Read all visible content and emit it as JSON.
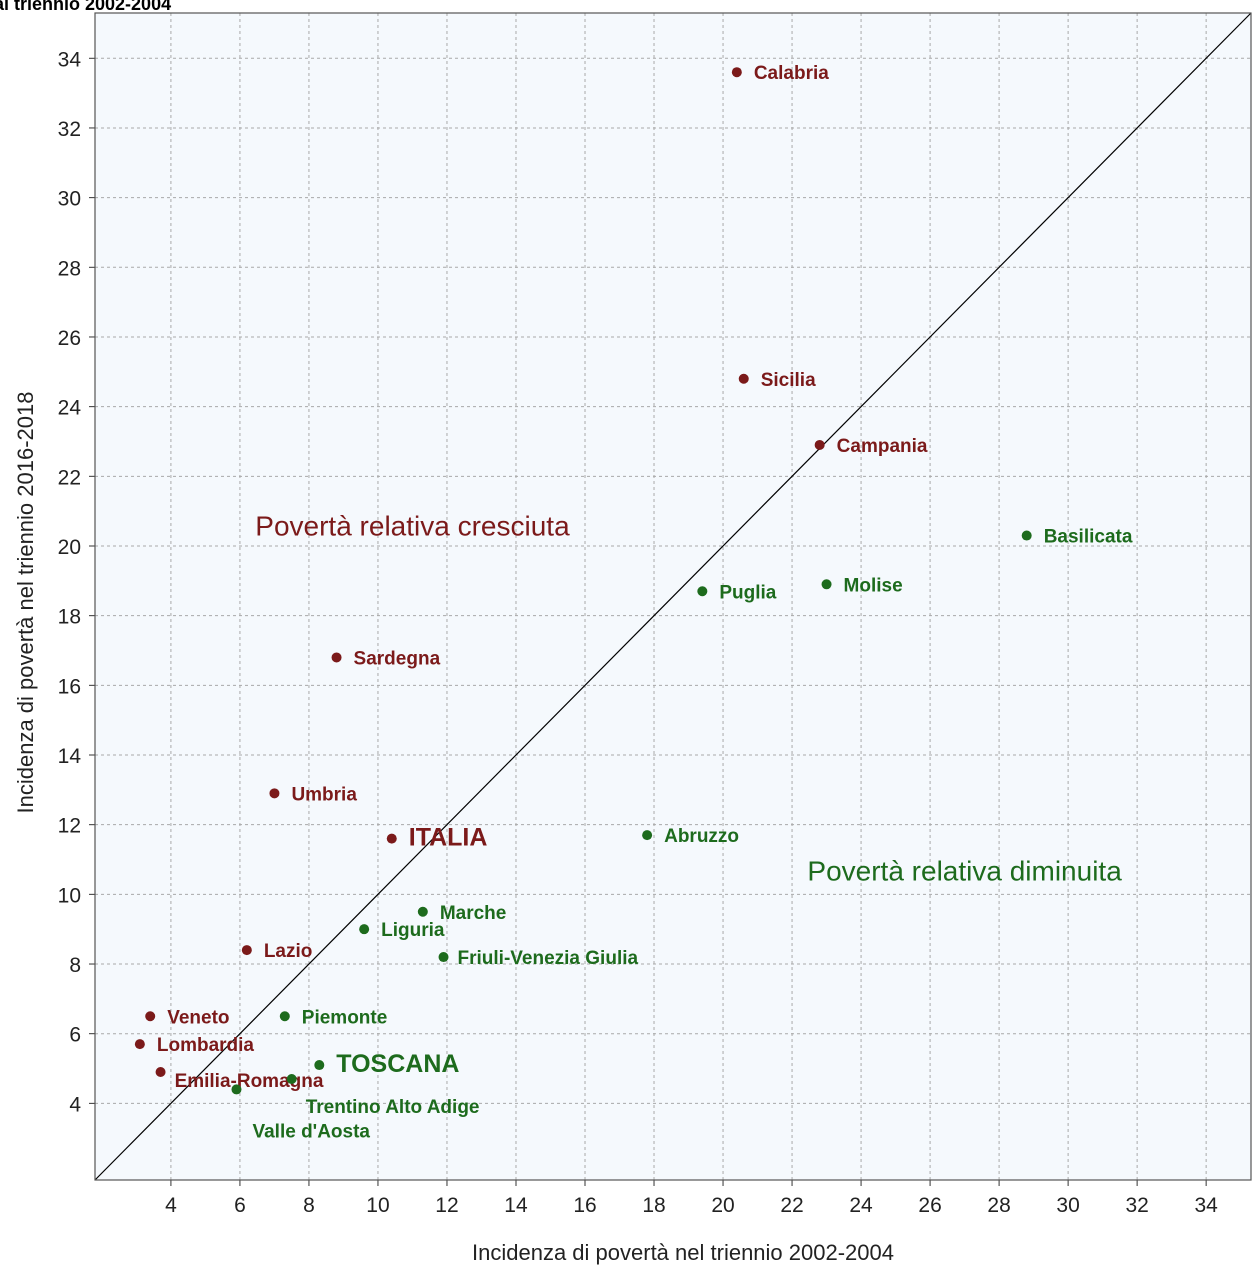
{
  "header": {
    "title": "al triennio 2002-2004"
  },
  "chart_data": {
    "type": "scatter",
    "xlabel": "Incidenza di povertà nel triennio 2002-2004",
    "ylabel": "Incidenza di povertà nel triennio 2016-2018",
    "xlim": [
      1.8,
      35.3
    ],
    "ylim": [
      1.8,
      35.3
    ],
    "x_ticks": [
      4,
      6,
      8,
      10,
      12,
      14,
      16,
      18,
      20,
      22,
      24,
      26,
      28,
      30,
      32,
      34
    ],
    "y_ticks": [
      4,
      6,
      8,
      10,
      12,
      14,
      16,
      18,
      20,
      22,
      24,
      26,
      28,
      30,
      32,
      34
    ],
    "grid": true,
    "reference_line": "y = x",
    "colors": {
      "increased": "#7b1a1a",
      "decreased": "#1d6b1d",
      "line": "#000000",
      "background": "#f5f9fd",
      "grid": "#a9a9a9"
    },
    "zone_labels": [
      {
        "text": "Povertà relativa cresciuta",
        "group": "increased",
        "x": 11.0,
        "y": 20.3
      },
      {
        "text": "Povertà relativa diminuita",
        "group": "decreased",
        "x": 27.0,
        "y": 10.4
      }
    ],
    "points": [
      {
        "label": "Calabria",
        "x": 20.4,
        "y": 33.6,
        "group": "increased"
      },
      {
        "label": "Sicilia",
        "x": 20.6,
        "y": 24.8,
        "group": "increased"
      },
      {
        "label": "Campania",
        "x": 22.8,
        "y": 22.9,
        "group": "increased"
      },
      {
        "label": "Sardegna",
        "x": 8.8,
        "y": 16.8,
        "group": "increased"
      },
      {
        "label": "Umbria",
        "x": 7.0,
        "y": 12.9,
        "group": "increased"
      },
      {
        "label": "ITALIA",
        "x": 10.4,
        "y": 11.6,
        "group": "increased",
        "emphasis": true
      },
      {
        "label": "Lazio",
        "x": 6.2,
        "y": 8.4,
        "group": "increased"
      },
      {
        "label": "Veneto",
        "x": 3.4,
        "y": 6.5,
        "group": "increased"
      },
      {
        "label": "Lombardia",
        "x": 3.1,
        "y": 5.7,
        "group": "increased"
      },
      {
        "label": "Emilia-Romagna",
        "x": 3.7,
        "y": 4.9,
        "group": "increased"
      },
      {
        "label": "Basilicata",
        "x": 28.8,
        "y": 20.3,
        "group": "decreased"
      },
      {
        "label": "Molise",
        "x": 23.0,
        "y": 18.9,
        "group": "decreased"
      },
      {
        "label": "Puglia",
        "x": 19.4,
        "y": 18.7,
        "group": "decreased"
      },
      {
        "label": "Abruzzo",
        "x": 17.8,
        "y": 11.7,
        "group": "decreased"
      },
      {
        "label": "Marche",
        "x": 11.3,
        "y": 9.5,
        "group": "decreased"
      },
      {
        "label": "Liguria",
        "x": 9.6,
        "y": 9.0,
        "group": "decreased"
      },
      {
        "label": "Friuli-Venezia Giulia",
        "x": 11.9,
        "y": 8.2,
        "group": "decreased"
      },
      {
        "label": "Piemonte",
        "x": 7.3,
        "y": 6.5,
        "group": "decreased"
      },
      {
        "label": "TOSCANA",
        "x": 8.3,
        "y": 5.1,
        "group": "decreased",
        "emphasis": true
      },
      {
        "label": "Trentino Alto Adige",
        "x": 7.5,
        "y": 4.7,
        "group": "decreased"
      },
      {
        "label": "Valle d'Aosta",
        "x": 5.9,
        "y": 4.4,
        "group": "decreased"
      }
    ]
  }
}
